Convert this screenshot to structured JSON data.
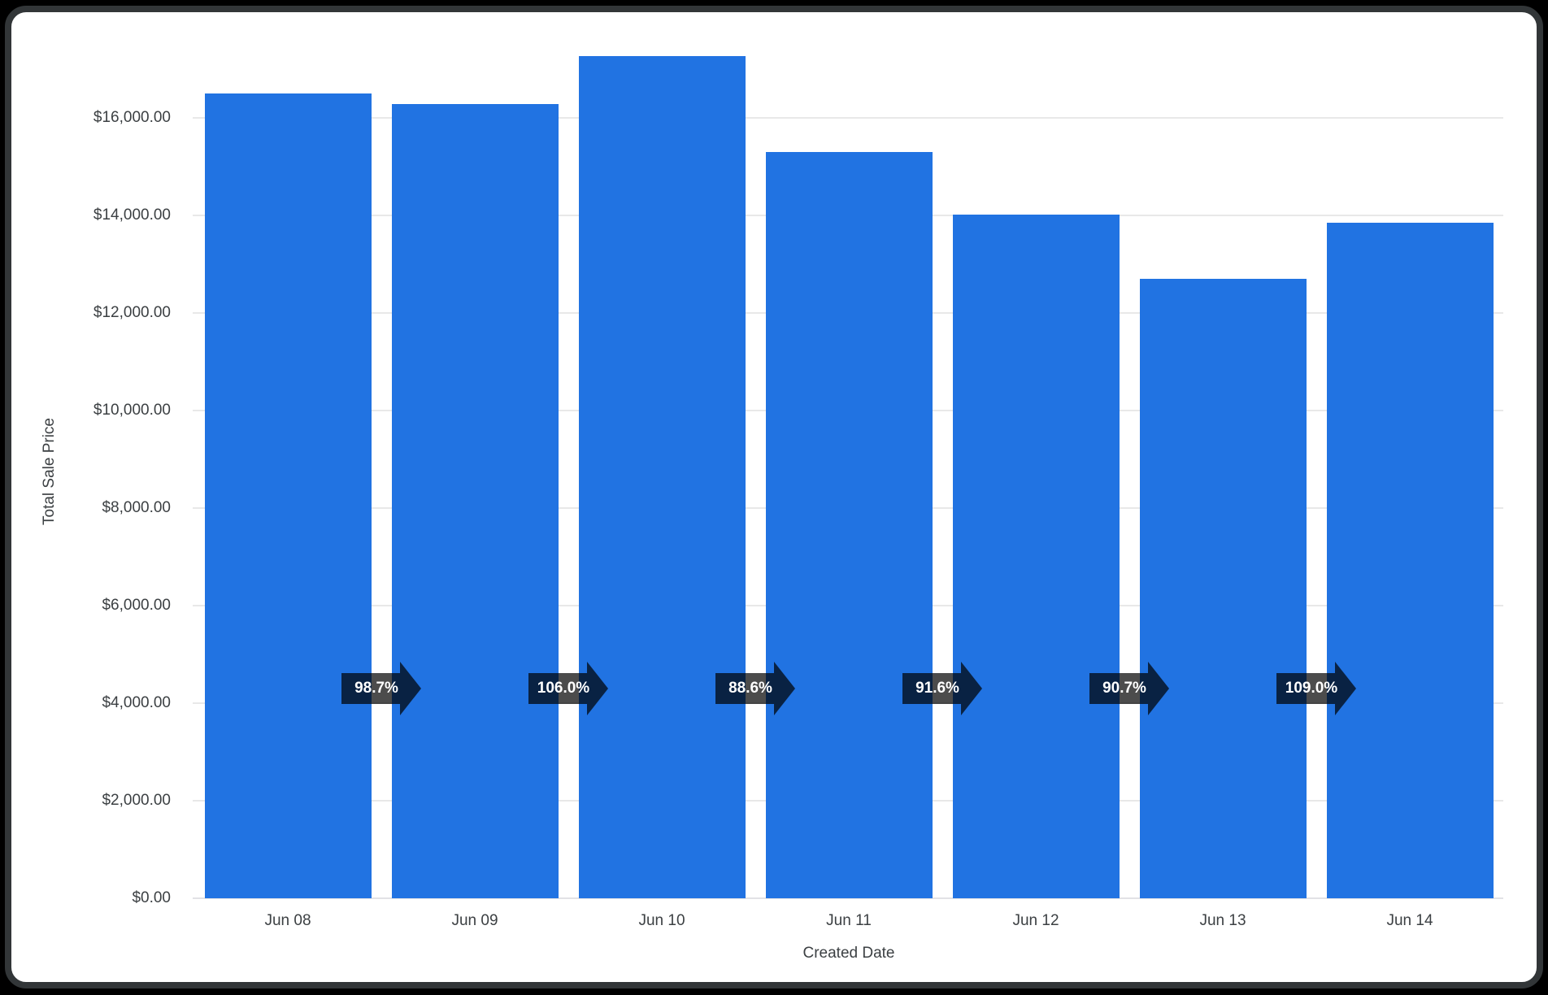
{
  "chart_data": {
    "type": "bar",
    "title": "",
    "xlabel": "Created Date",
    "ylabel": "Total Sale Price",
    "categories": [
      "Jun 08",
      "Jun 09",
      "Jun 10",
      "Jun 11",
      "Jun 12",
      "Jun 13",
      "Jun 14"
    ],
    "series": [
      {
        "name": "Total Sale Price",
        "values": [
          16500,
          16285,
          17262,
          15294,
          14009,
          12706,
          13850
        ]
      }
    ],
    "growth_badges": [
      {
        "from": "Jun 08",
        "to": "Jun 09",
        "label": "98.7%"
      },
      {
        "from": "Jun 09",
        "to": "Jun 10",
        "label": "106.0%"
      },
      {
        "from": "Jun 10",
        "to": "Jun 11",
        "label": "88.6%"
      },
      {
        "from": "Jun 11",
        "to": "Jun 12",
        "label": "91.6%"
      },
      {
        "from": "Jun 12",
        "to": "Jun 13",
        "label": "90.7%"
      },
      {
        "from": "Jun 13",
        "to": "Jun 14",
        "label": "109.0%"
      }
    ],
    "y_ticks": [
      {
        "value": 0,
        "label": "$0.00"
      },
      {
        "value": 2000,
        "label": "$2,000.00"
      },
      {
        "value": 4000,
        "label": "$4,000.00"
      },
      {
        "value": 6000,
        "label": "$6,000.00"
      },
      {
        "value": 8000,
        "label": "$8,000.00"
      },
      {
        "value": 10000,
        "label": "$10,000.00"
      },
      {
        "value": 12000,
        "label": "$12,000.00"
      },
      {
        "value": 14000,
        "label": "$14,000.00"
      },
      {
        "value": 16000,
        "label": "$16,000.00"
      }
    ],
    "ylim": [
      0,
      17500
    ],
    "grid": "horizontal",
    "legend": "none",
    "colors": {
      "bar": "#2173e2",
      "badge_background": "rgba(0,0,0,0.70)",
      "badge_text": "#ffffff",
      "gridline": "#e8e8e8",
      "axis_text": "#3c4043",
      "card_background": "#ffffff",
      "card_border": "#323638",
      "page_background": "#000000"
    }
  }
}
